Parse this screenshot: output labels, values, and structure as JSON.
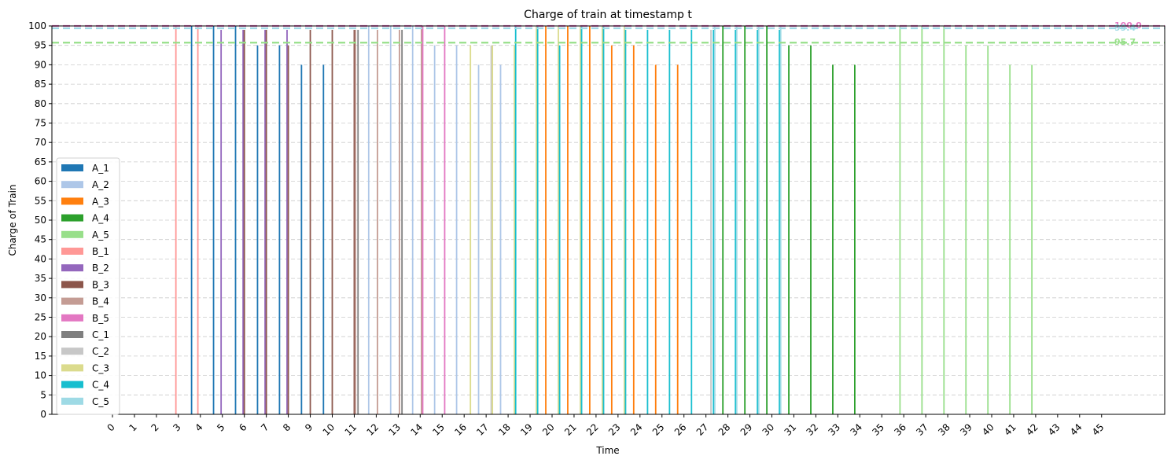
{
  "chart_data": {
    "type": "bar",
    "title": "Charge of train at timestamp t",
    "xlabel": "Time",
    "ylabel": "Charge of Train",
    "x": [
      0,
      1,
      2,
      3,
      4,
      5,
      6,
      7,
      8,
      9,
      10,
      11,
      12,
      13,
      14,
      15,
      16,
      17,
      18,
      19,
      20,
      21,
      22,
      23,
      24,
      25,
      26,
      27,
      28,
      29,
      30,
      31,
      32,
      33,
      34,
      35,
      36,
      37,
      38,
      39,
      40,
      41,
      42,
      43,
      44,
      45
    ],
    "ylim": [
      0,
      100
    ],
    "yticks": [
      0,
      5,
      10,
      15,
      20,
      25,
      30,
      35,
      40,
      45,
      50,
      55,
      60,
      65,
      70,
      75,
      80,
      85,
      90,
      95,
      100
    ],
    "grid": "horizontal dashed",
    "legend_position": "center-left",
    "series": [
      {
        "name": "A_1",
        "color": "#1f77b4",
        "points": [
          [
            4,
            100
          ],
          [
            5,
            100
          ],
          [
            6,
            100
          ],
          [
            7,
            95
          ],
          [
            8,
            95
          ],
          [
            9,
            90
          ],
          [
            10,
            90
          ]
        ]
      },
      {
        "name": "A_2",
        "color": "#aec7e8",
        "points": [
          [
            12,
            100
          ],
          [
            13,
            100
          ],
          [
            14,
            100
          ],
          [
            15,
            95
          ],
          [
            16,
            95
          ],
          [
            17,
            90
          ],
          [
            18,
            90
          ]
        ]
      },
      {
        "name": "A_3",
        "color": "#ff7f0e",
        "points": [
          [
            20,
            100
          ],
          [
            21,
            100
          ],
          [
            22,
            100
          ],
          [
            23,
            95
          ],
          [
            24,
            95
          ],
          [
            25,
            90
          ],
          [
            26,
            90
          ]
        ]
      },
      {
        "name": "A_4",
        "color": "#2ca02c",
        "points": [
          [
            28,
            100
          ],
          [
            29,
            100
          ],
          [
            30,
            100
          ],
          [
            31,
            95
          ],
          [
            32,
            95
          ],
          [
            33,
            90
          ],
          [
            34,
            90
          ]
        ]
      },
      {
        "name": "A_5",
        "color": "#98df8a",
        "points": [
          [
            36,
            100
          ],
          [
            37,
            100
          ],
          [
            38,
            100
          ],
          [
            39,
            95
          ],
          [
            40,
            95
          ],
          [
            41,
            90
          ],
          [
            42,
            90
          ]
        ]
      },
      {
        "name": "B_1",
        "color": "#ff9896",
        "points": [
          [
            3,
            100
          ],
          [
            4,
            100
          ]
        ]
      },
      {
        "name": "B_2",
        "color": "#9467bd",
        "points": [
          [
            5,
            99
          ],
          [
            6,
            99
          ],
          [
            7,
            99
          ],
          [
            8,
            99
          ]
        ]
      },
      {
        "name": "B_3",
        "color": "#8c564b",
        "points": [
          [
            6,
            99
          ],
          [
            7,
            99
          ],
          [
            8,
            95
          ],
          [
            9,
            99
          ],
          [
            10,
            99
          ],
          [
            11,
            99
          ]
        ]
      },
      {
        "name": "B_4",
        "color": "#c49c94",
        "points": [
          [
            11,
            99
          ],
          [
            12,
            99
          ],
          [
            13,
            99
          ],
          [
            14,
            100
          ]
        ]
      },
      {
        "name": "B_5",
        "color": "#e377c2",
        "points": [
          [
            14,
            100
          ],
          [
            15,
            100
          ]
        ]
      },
      {
        "name": "C_1",
        "color": "#7f7f7f",
        "points": [
          [
            11,
            99
          ],
          [
            13,
            99
          ]
        ]
      },
      {
        "name": "C_2",
        "color": "#c7c7c7",
        "points": [
          [
            17,
            95
          ],
          [
            27,
            99
          ]
        ]
      },
      {
        "name": "C_3",
        "color": "#dbdb8d",
        "points": [
          [
            16,
            95
          ],
          [
            17,
            95
          ],
          [
            18,
            95
          ],
          [
            19,
            100
          ],
          [
            20,
            100
          ],
          [
            21,
            100
          ],
          [
            22,
            100
          ],
          [
            23,
            100
          ]
        ]
      },
      {
        "name": "C_4",
        "color": "#17becf",
        "points": [
          [
            18,
            100
          ],
          [
            19,
            100
          ],
          [
            20,
            95
          ],
          [
            21,
            100
          ],
          [
            22,
            100
          ],
          [
            23,
            99
          ],
          [
            24,
            99
          ],
          [
            25,
            99
          ],
          [
            26,
            99
          ],
          [
            27,
            99
          ],
          [
            28,
            99
          ],
          [
            29,
            99
          ],
          [
            30,
            99
          ]
        ]
      },
      {
        "name": "C_5",
        "color": "#9edae5",
        "points": [
          [
            27,
            100
          ],
          [
            28,
            100
          ],
          [
            29,
            100
          ],
          [
            30,
            100
          ]
        ]
      }
    ],
    "reference_lines": [
      {
        "value": 100.0,
        "label": "100.0",
        "color": "#e377c2"
      },
      {
        "value": 99.4,
        "label": "99.4",
        "color": "#9edae5"
      },
      {
        "value": 95.7,
        "label": "95.7",
        "color": "#98df8a"
      }
    ]
  }
}
